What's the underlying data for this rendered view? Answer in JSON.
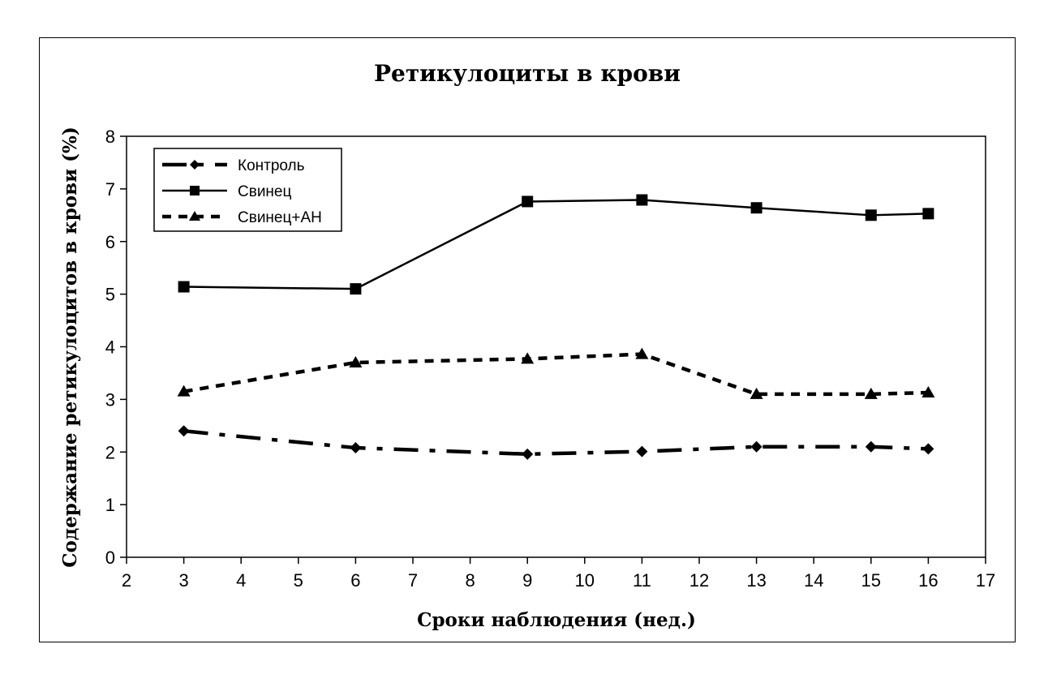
{
  "chart_data": {
    "type": "line",
    "title": "Ретикулоциты в крови",
    "xlabel": "Сроки наблюдения (нед.)",
    "ylabel": "Содержание ретикулоцитов в крови (%)",
    "xlim": [
      2,
      17
    ],
    "ylim": [
      0,
      8
    ],
    "xticks": [
      2,
      3,
      4,
      5,
      6,
      7,
      8,
      9,
      10,
      11,
      12,
      13,
      14,
      15,
      16,
      17
    ],
    "yticks": [
      0,
      1,
      2,
      3,
      4,
      5,
      6,
      7,
      8
    ],
    "x": [
      3,
      6,
      9,
      11,
      13,
      15,
      16
    ],
    "grid": false,
    "legend_position": "top-left",
    "series": [
      {
        "name": "Контроль",
        "marker": "diamond",
        "line": "dash-dot",
        "color": "#000000",
        "values": [
          2.4,
          2.08,
          1.96,
          2.01,
          2.1,
          2.1,
          2.06
        ]
      },
      {
        "name": "Свинец",
        "marker": "square",
        "line": "solid",
        "color": "#000000",
        "values": [
          5.14,
          5.1,
          6.76,
          6.79,
          6.64,
          6.5,
          6.53
        ]
      },
      {
        "name": "Свинец+АН",
        "marker": "triangle",
        "line": "dashed",
        "color": "#000000",
        "values": [
          3.15,
          3.7,
          3.77,
          3.86,
          3.1,
          3.1,
          3.13
        ]
      }
    ]
  }
}
